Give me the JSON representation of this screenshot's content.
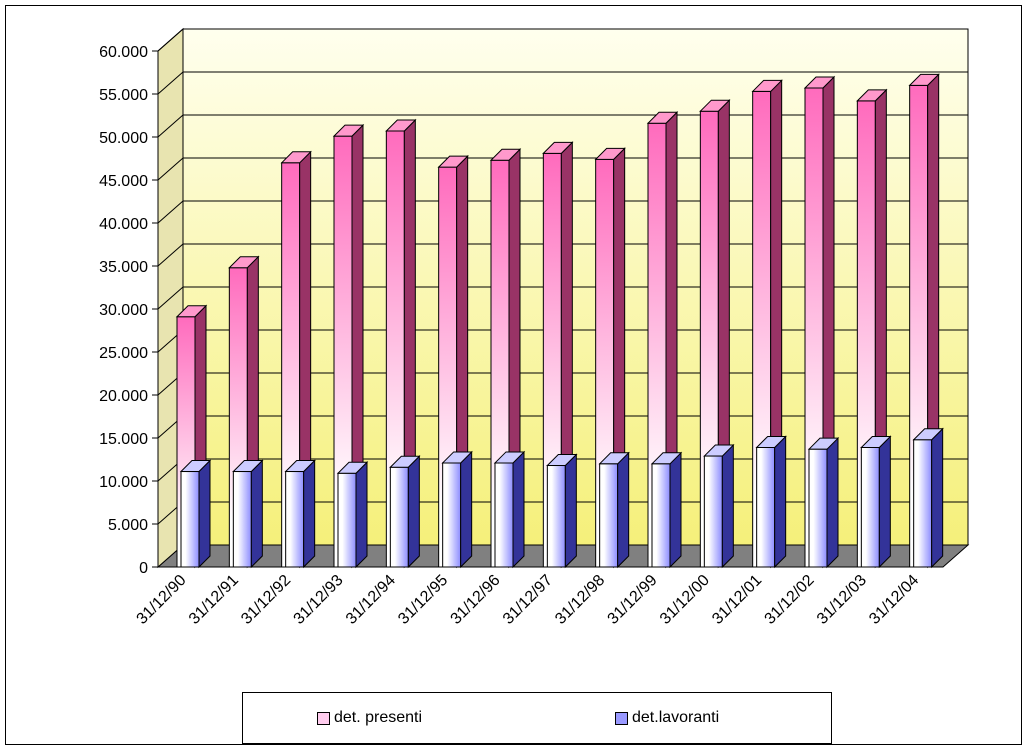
{
  "chart_data": {
    "type": "bar",
    "categories": [
      "31/12/90",
      "31/12/91",
      "31/12/92",
      "31/12/93",
      "31/12/94",
      "31/12/95",
      "31/12/96",
      "31/12/97",
      "31/12/98",
      "31/12/99",
      "31/12/00",
      "31/12/01",
      "31/12/02",
      "31/12/03",
      "31/12/04"
    ],
    "series": [
      {
        "name": "det. presenti",
        "color": "#ff66cc",
        "values": [
          29100,
          34800,
          47000,
          50100,
          50700,
          46500,
          47300,
          48100,
          47400,
          51600,
          53000,
          55300,
          55700,
          54200,
          56000
        ]
      },
      {
        "name": "det.lavoranti",
        "color": "#9999ff",
        "values": [
          11100,
          11100,
          11100,
          10900,
          11600,
          12100,
          12100,
          11800,
          12000,
          12000,
          12900,
          13900,
          13700,
          13900,
          14800
        ]
      }
    ],
    "yticks": [
      "0",
      "5.000",
      "10.000",
      "15.000",
      "20.000",
      "25.000",
      "30.000",
      "35.000",
      "40.000",
      "45.000",
      "50.000",
      "55.000",
      "60.000"
    ],
    "ylim": [
      0,
      60000
    ],
    "grid": true,
    "legend_position": "bottom",
    "title": "",
    "xlabel": "",
    "ylabel": ""
  }
}
